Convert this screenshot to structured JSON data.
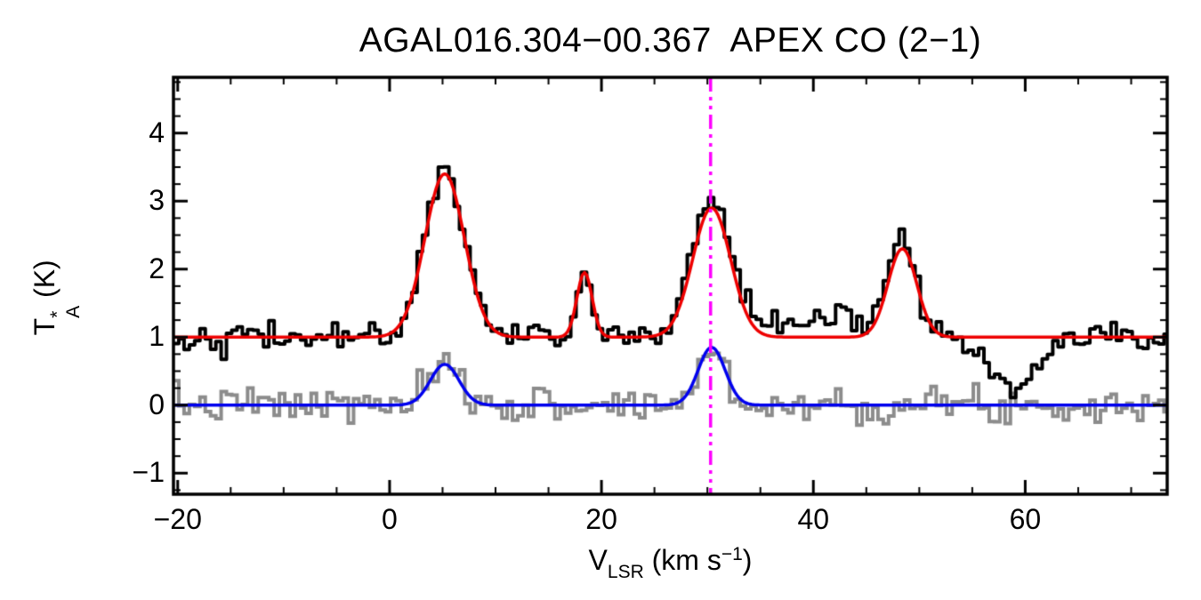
{
  "title": "AGAL016.304−00.367  APEX CO (2−1)",
  "xlabel": {
    "pre": "V",
    "sub": "LSR",
    "mid": " (km s",
    "sup": "−1",
    "post": ")"
  },
  "ylabel": {
    "pre": "T",
    "sup": "*",
    "sub": "A",
    "post": " (K)"
  },
  "chart_data": {
    "type": "line",
    "title": "AGAL016.304−00.367  APEX CO (2−1)",
    "xlabel": "V_LSR (km s^−1)",
    "ylabel": "T_A^* (K)",
    "xlim": [
      -20.4,
      73.4
    ],
    "ylim": [
      -1.31,
      4.82
    ],
    "x_major_ticks": [
      -20,
      0,
      20,
      40,
      60
    ],
    "x_tick_labels": [
      "−20",
      "0",
      "20",
      "40",
      "60"
    ],
    "x_minor_step": 5,
    "y_major_ticks": [
      -1,
      0,
      1,
      2,
      3,
      4
    ],
    "y_tick_labels": [
      "−1",
      "0",
      "1",
      "2",
      "3",
      "4"
    ],
    "y_minor_step": 0.25,
    "grid": false,
    "background": "#ffffff",
    "axis_color": "#000000",
    "reference_line": {
      "x": 30.3,
      "color": "#FF00FF",
      "style": "dash-dot-dot",
      "orientation": "vertical"
    },
    "spectra": [
      {
        "name": "black-histogram-spectrum",
        "color": "#000000",
        "line_width": 4,
        "baseline_offset": 1.0,
        "noise_rms": 0.1,
        "channel_width": 0.5,
        "seed": 42,
        "components": [
          {
            "center": 5.2,
            "peak": 2.5,
            "fwhm": 4.4
          },
          {
            "center": 18.4,
            "peak": 1.05,
            "fwhm": 1.6
          },
          {
            "center": 30.4,
            "peak": 2.0,
            "fwhm": 4.4
          },
          {
            "center": 48.4,
            "peak": 1.35,
            "fwhm": 3.2
          },
          {
            "center": 40.5,
            "peak": 0.3,
            "fwhm": 10.0
          },
          {
            "center": 59.0,
            "peak": -0.82,
            "fwhm": 5.0
          }
        ]
      },
      {
        "name": "gray-histogram-spectrum",
        "color": "#8c8c8c",
        "line_width": 4,
        "baseline_offset": 0.0,
        "noise_rms": 0.13,
        "channel_width": 0.5,
        "seed": 7,
        "components": [
          {
            "center": 5.2,
            "peak": 0.55,
            "fwhm": 3.2
          },
          {
            "center": 30.4,
            "peak": 0.8,
            "fwhm": 3.0
          }
        ]
      }
    ],
    "fits": [
      {
        "name": "red-gaussian-fit",
        "color": "#EE0000",
        "line_width": 3.5,
        "offset": 1.0,
        "components": [
          {
            "center": 5.2,
            "peak": 2.4,
            "fwhm": 4.4
          },
          {
            "center": 18.4,
            "peak": 0.95,
            "fwhm": 1.7
          },
          {
            "center": 30.4,
            "peak": 1.9,
            "fwhm": 4.2
          },
          {
            "center": 48.4,
            "peak": 1.3,
            "fwhm": 3.2
          }
        ]
      },
      {
        "name": "blue-gaussian-fit",
        "color": "#0000EE",
        "line_width": 3.5,
        "offset": 0.0,
        "components": [
          {
            "center": 5.2,
            "peak": 0.6,
            "fwhm": 3.2
          },
          {
            "center": 30.4,
            "peak": 0.85,
            "fwhm": 3.0
          }
        ]
      }
    ]
  }
}
